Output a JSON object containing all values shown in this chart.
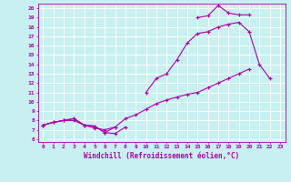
{
  "bg_color": "#c8f0f0",
  "line_color": "#aa00aa",
  "xlabel": "Windchill (Refroidissement éolien,°C)",
  "xlim": [
    -0.5,
    23.5
  ],
  "ylim": [
    5.7,
    20.5
  ],
  "yticks": [
    6,
    7,
    8,
    9,
    10,
    11,
    12,
    13,
    14,
    15,
    16,
    17,
    18,
    19,
    20
  ],
  "xticks": [
    0,
    1,
    2,
    3,
    4,
    5,
    6,
    7,
    8,
    9,
    10,
    11,
    12,
    13,
    14,
    15,
    16,
    17,
    18,
    19,
    20,
    21,
    22,
    23
  ],
  "series": [
    {
      "x": [
        0,
        1,
        2,
        3,
        4,
        5,
        6,
        7,
        8,
        9,
        10,
        11,
        12,
        13,
        14,
        15,
        16,
        17,
        18,
        19,
        20
      ],
      "y": [
        7.5,
        7.8,
        8.0,
        8.0,
        7.5,
        7.2,
        7.0,
        7.3,
        8.2,
        8.6,
        9.2,
        9.8,
        10.2,
        10.5,
        10.8,
        11.0,
        11.5,
        12.0,
        12.5,
        13.0,
        13.5
      ]
    },
    {
      "segments": [
        {
          "x": [
            0,
            1,
            2,
            3,
            4,
            5,
            6,
            7,
            8
          ],
          "y": [
            7.5,
            7.8,
            8.0,
            8.2,
            7.5,
            7.4,
            6.7,
            6.6,
            7.3
          ]
        },
        {
          "x": [
            10,
            11,
            12,
            13,
            14,
            15,
            16,
            17,
            18,
            19,
            20,
            21,
            22
          ],
          "y": [
            11.0,
            12.5,
            13.0,
            14.5,
            16.3,
            17.3,
            17.5,
            18.0,
            18.3,
            18.5,
            17.5,
            14.0,
            12.5
          ]
        }
      ]
    },
    {
      "segments": [
        {
          "x": [
            0,
            1,
            2,
            3,
            4,
            5,
            6,
            7
          ],
          "y": [
            7.5,
            7.8,
            8.0,
            8.2,
            7.5,
            7.4,
            6.7,
            7.3
          ]
        },
        {
          "x": [
            15,
            16,
            17,
            18,
            19,
            20
          ],
          "y": [
            19.0,
            19.2,
            20.3,
            19.5,
            19.3,
            19.3
          ]
        }
      ]
    }
  ]
}
